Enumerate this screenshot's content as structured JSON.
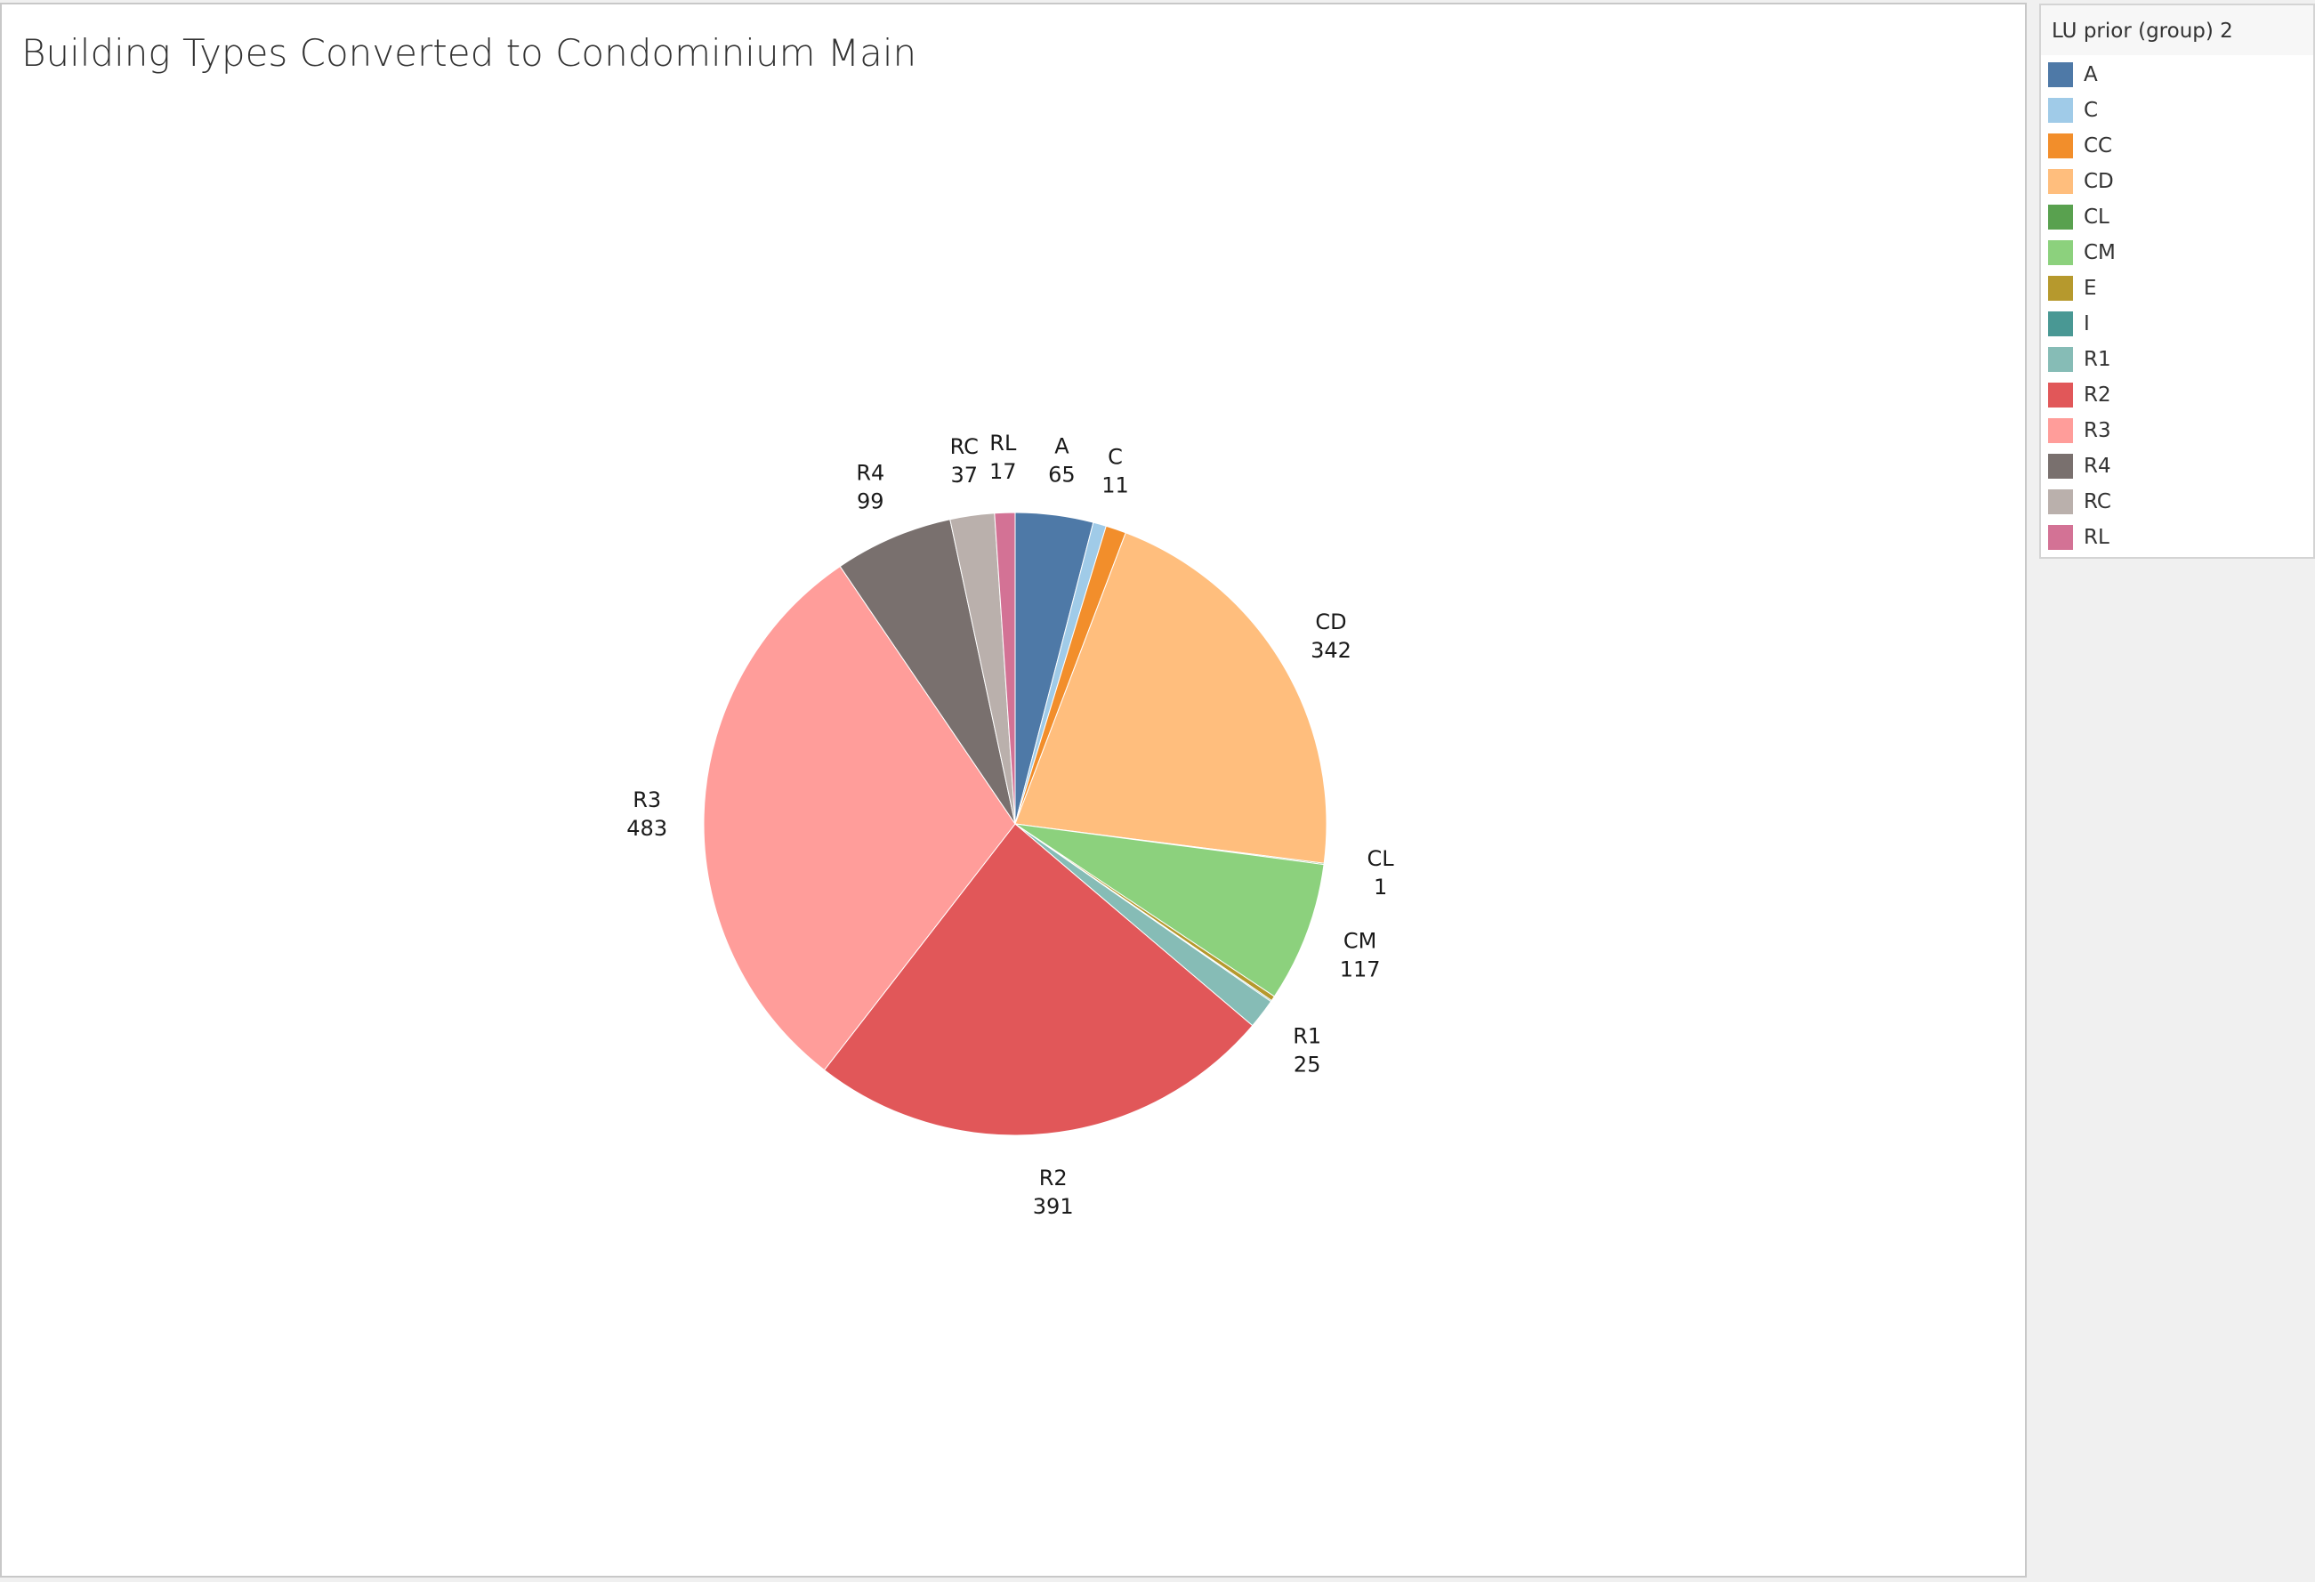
{
  "chart_data": {
    "type": "pie",
    "title": "Building Types Converted to Condominium Main",
    "legend": {
      "title": "LU prior (group) 2",
      "position": "right"
    },
    "slices": [
      {
        "label": "A",
        "value": 65,
        "color": "#4e79a7",
        "show_label": true
      },
      {
        "label": "C",
        "value": 11,
        "color": "#a0cbe8",
        "show_label": true
      },
      {
        "label": "CC",
        "value": 17,
        "color": "#f28e2b",
        "show_label": false
      },
      {
        "label": "CD",
        "value": 342,
        "color": "#ffbe7d",
        "show_label": true
      },
      {
        "label": "CL",
        "value": 1,
        "color": "#59a14f",
        "show_label": true
      },
      {
        "label": "CM",
        "value": 117,
        "color": "#8cd17d",
        "show_label": true
      },
      {
        "label": "E",
        "value": 4,
        "color": "#b6992d",
        "show_label": false
      },
      {
        "label": "I",
        "value": 1,
        "color": "#499894",
        "show_label": false
      },
      {
        "label": "R1",
        "value": 25,
        "color": "#86bcb6",
        "show_label": true
      },
      {
        "label": "R2",
        "value": 391,
        "color": "#e15759",
        "show_label": true
      },
      {
        "label": "R3",
        "value": 483,
        "color": "#ff9d9a",
        "show_label": true
      },
      {
        "label": "R4",
        "value": 99,
        "color": "#79706e",
        "show_label": true
      },
      {
        "label": "RC",
        "value": 37,
        "color": "#bab0ac",
        "show_label": true
      },
      {
        "label": "RL",
        "value": 17,
        "color": "#d37295",
        "show_label": true
      }
    ]
  }
}
